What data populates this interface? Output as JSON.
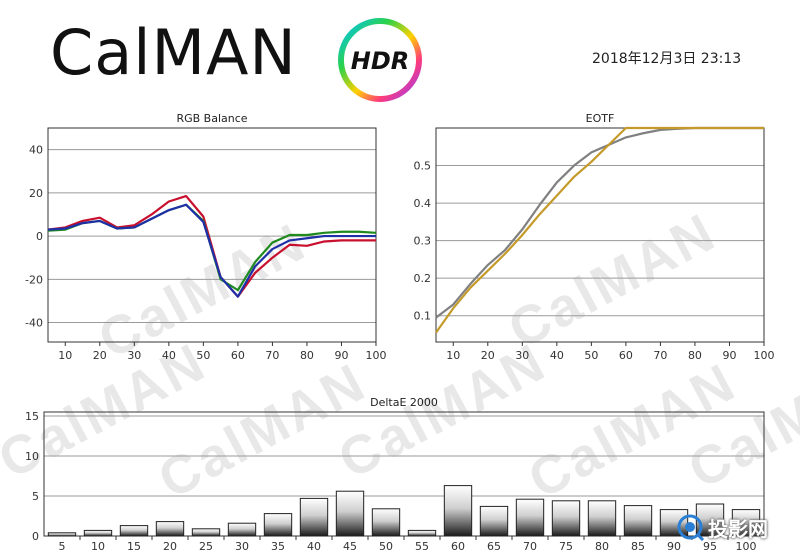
{
  "header": {
    "logo_text": "CalMAN",
    "badge_text": "HDR",
    "timestamp": "2018年12月3日 23:13"
  },
  "colors": {
    "red": "#c8102e",
    "green": "#1f8a1f",
    "blue": "#1f2fa8",
    "gray": "#808080",
    "gold": "#c49a2a"
  },
  "watermark": {
    "text": "CalMAN"
  },
  "brand": {
    "icon": "camera-lens-icon",
    "text": "投影网"
  },
  "chart_data": [
    {
      "type": "line",
      "title": "RGB Balance",
      "x": [
        5,
        10,
        15,
        20,
        25,
        30,
        35,
        40,
        45,
        50,
        55,
        60,
        65,
        70,
        75,
        80,
        85,
        90,
        95,
        100
      ],
      "xticks": [
        10,
        20,
        30,
        40,
        50,
        60,
        70,
        80,
        90,
        100
      ],
      "yticks": [
        -40,
        -20,
        0,
        20,
        40
      ],
      "xlim": [
        5,
        100
      ],
      "ylim": [
        -49,
        50
      ],
      "grid": true,
      "series": [
        {
          "color": "red",
          "values": [
            3,
            4,
            7,
            8.5,
            4,
            5,
            10,
            16,
            18.5,
            9,
            -19,
            -28,
            -17,
            -10,
            -4,
            -4.5,
            -2.5,
            -2,
            -2,
            -2
          ]
        },
        {
          "color": "green",
          "values": [
            2.5,
            3,
            6,
            7,
            3.5,
            4,
            8,
            12,
            14.5,
            7,
            -20,
            -25,
            -12,
            -3,
            0.5,
            0.5,
            1.5,
            2,
            2,
            1.5
          ]
        },
        {
          "color": "blue",
          "values": [
            3,
            3.5,
            6,
            7,
            3.5,
            4,
            8,
            12,
            14.5,
            6.5,
            -19,
            -28,
            -14,
            -6,
            -2,
            -1,
            0,
            0,
            0,
            0
          ]
        }
      ]
    },
    {
      "type": "line",
      "title": "EOTF",
      "x": [
        5,
        10,
        15,
        20,
        25,
        30,
        35,
        40,
        45,
        50,
        55,
        60,
        65,
        70,
        75,
        80,
        85,
        90,
        95,
        100
      ],
      "xticks": [
        10,
        20,
        30,
        40,
        50,
        60,
        70,
        80,
        90,
        100
      ],
      "yticks": [
        0.1,
        0.2,
        0.3,
        0.4,
        0.5
      ],
      "xlim": [
        5,
        100
      ],
      "ylim": [
        0.03,
        0.6
      ],
      "grid": true,
      "series": [
        {
          "color": "gray",
          "values": [
            0.095,
            0.13,
            0.185,
            0.235,
            0.275,
            0.33,
            0.395,
            0.455,
            0.5,
            0.535,
            0.555,
            0.575,
            0.586,
            0.595,
            0.598,
            0.6,
            0.6,
            0.6,
            0.6,
            0.6
          ]
        },
        {
          "color": "gold",
          "values": [
            0.055,
            0.12,
            0.175,
            0.22,
            0.265,
            0.315,
            0.37,
            0.42,
            0.47,
            0.51,
            0.555,
            0.6,
            0.6,
            0.6,
            0.6,
            0.6,
            0.6,
            0.6,
            0.6,
            0.6
          ]
        }
      ]
    },
    {
      "type": "bar",
      "title": "DeltaE 2000",
      "categories": [
        "5",
        "10",
        "15",
        "20",
        "25",
        "30",
        "35",
        "40",
        "45",
        "50",
        "55",
        "60",
        "65",
        "70",
        "75",
        "80",
        "85",
        "90",
        "95",
        "100"
      ],
      "values": [
        0.4,
        0.7,
        1.3,
        1.8,
        0.9,
        1.6,
        2.8,
        4.7,
        5.6,
        3.4,
        0.7,
        6.3,
        3.7,
        4.6,
        4.4,
        4.4,
        3.8,
        3.3,
        4.0,
        3.3
      ],
      "yticks": [
        0,
        5,
        10,
        15
      ],
      "ylim": [
        0,
        15.5
      ],
      "grid": true
    }
  ]
}
